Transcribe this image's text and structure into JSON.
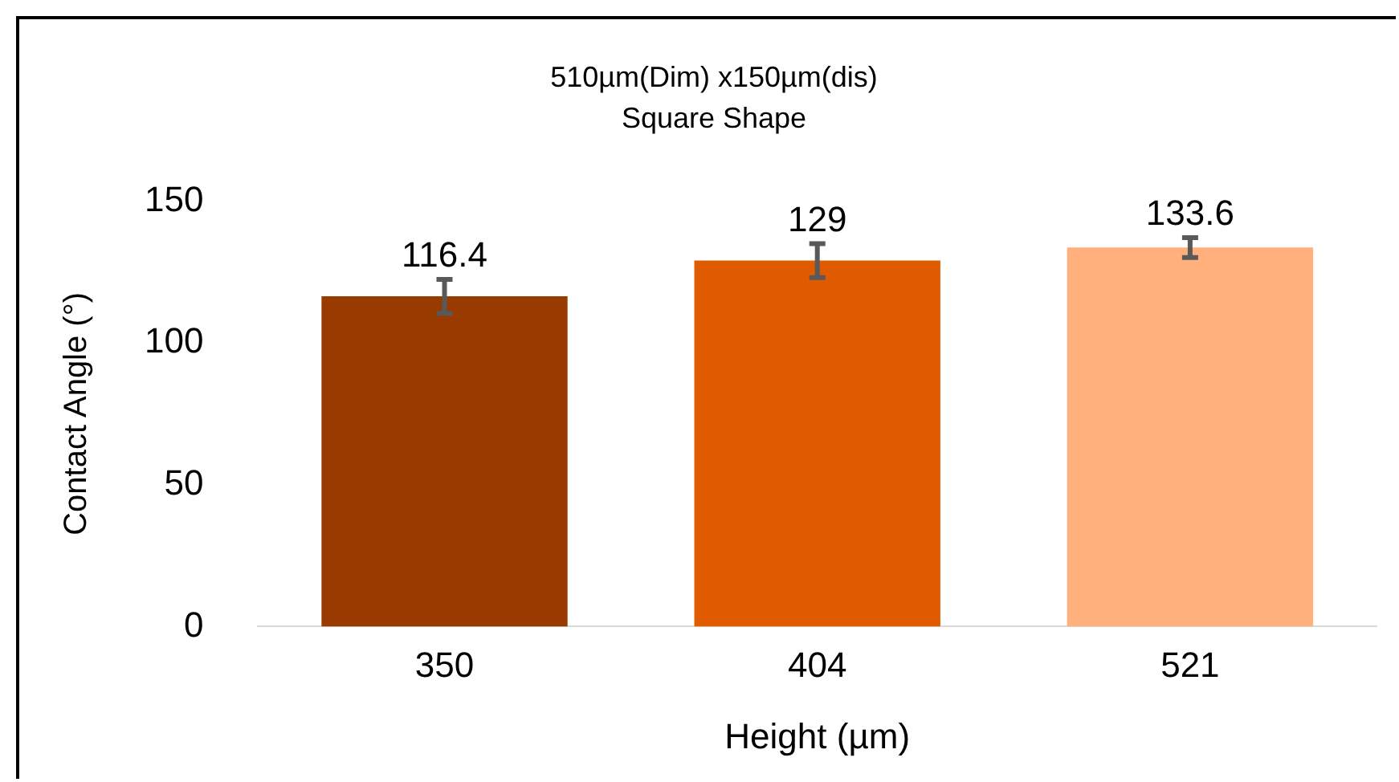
{
  "chart_data": {
    "type": "bar",
    "title": "510µm(Dim) x150µm(dis)",
    "subtitle": "Square Shape",
    "xlabel": "Height (µm)",
    "ylabel": "Contact Angle (°)",
    "categories": [
      "350",
      "404",
      "521"
    ],
    "values": [
      116.4,
      129,
      133.6
    ],
    "colors": [
      "#993a00",
      "#e05a00",
      "#ffb07c"
    ],
    "errors": [
      6,
      6,
      3.5
    ],
    "ylim": [
      0,
      150
    ],
    "yticks": [
      0,
      50,
      100,
      150
    ],
    "grid": false,
    "legend": false,
    "data_labels": true
  }
}
